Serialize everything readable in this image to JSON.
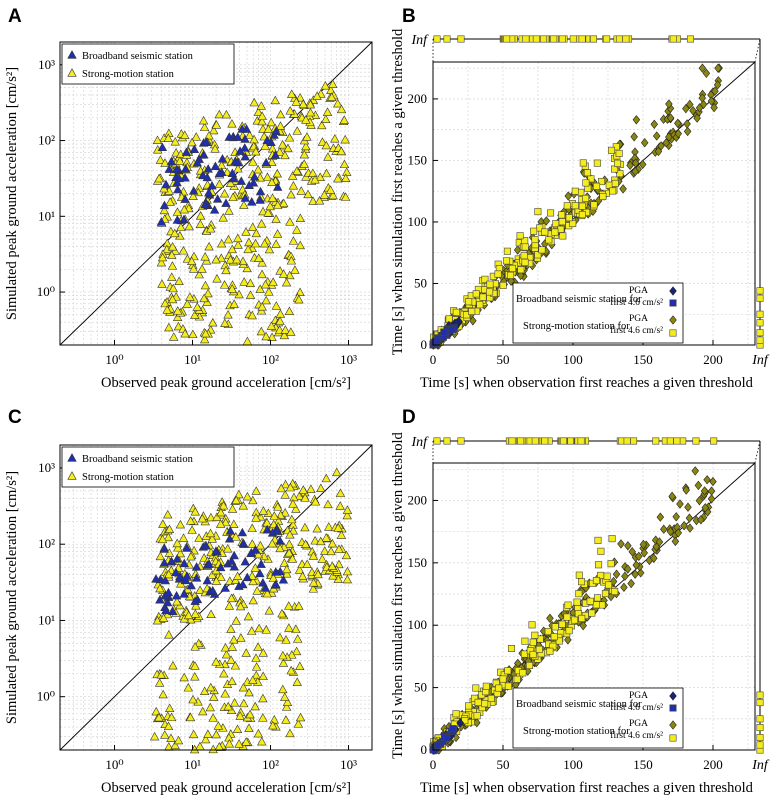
{
  "colors": {
    "broadband": "#1f2fb0",
    "strong_motion": "#f5ec1c",
    "diamond_sm": "#8a8612",
    "diamond_bb": "#1a237a",
    "grid": "#d0d0d0"
  },
  "chart_data": [
    {
      "id": "A",
      "type": "scatter",
      "scale": "loglog",
      "panel_label": "A",
      "xlabel": "Observed peak ground acceleration [cm/s²]",
      "ylabel": "Simulated peak ground acceleration [cm/s²]",
      "xlim": [
        0.2,
        2000
      ],
      "ylim": [
        0.2,
        2000
      ],
      "xticks": [
        "10⁰",
        "10¹",
        "10²",
        "10³"
      ],
      "yticks": [
        "10⁰",
        "10¹",
        "10²",
        "10³"
      ],
      "legend": [
        "Broadband seismic station",
        "Strong-motion station"
      ],
      "series": [
        {
          "name": "Broadband seismic station",
          "marker": "triangle",
          "seed": 11,
          "n": 70,
          "clusters": [
            {
              "w": 1,
              "lx": [
                0.6,
                2.1
              ],
              "ly": [
                1.05,
                2.1
              ]
            }
          ]
        },
        {
          "name": "Strong-motion station",
          "marker": "triangle",
          "seed": 23,
          "n": 430,
          "clusters": [
            {
              "w": 0.62,
              "lx": [
                0.55,
                3.0
              ],
              "ly": [
                0.95,
                2.5
              ]
            },
            {
              "w": 0.38,
              "lx": [
                0.6,
                2.4
              ],
              "ly": [
                -0.75,
                0.85
              ]
            }
          ]
        }
      ]
    },
    {
      "id": "B",
      "type": "scatter",
      "scale": "linear",
      "panel_label": "B",
      "xlabel": "Time [s] when observation first reaches a given threshold",
      "ylabel": "Time [s] when simulation first reaches a given threshold",
      "xlim": [
        0,
        230
      ],
      "ylim": [
        0,
        230
      ],
      "xticks": [
        "0",
        "50",
        "100",
        "150",
        "200"
      ],
      "yticks": [
        "0",
        "50",
        "100",
        "150",
        "200"
      ],
      "inf_label": "Inf",
      "legend": {
        "broadband_label": "Broadband seismic station for",
        "strong_label": "Strong-motion station for",
        "pga": "PGA",
        "first": "first 4.6 cm/s²"
      },
      "series": [
        {
          "name": "Strong-motion PGA",
          "marker": "diamond",
          "seed": 31,
          "n": 300,
          "maxx": 205,
          "spreadUp": 55,
          "spreadDown": 12
        },
        {
          "name": "Strong-motion first 4.6 cm/s²",
          "marker": "square",
          "seed": 37,
          "n": 200,
          "maxx": 135,
          "spreadUp": 60,
          "spreadDown": 6
        },
        {
          "name": "Broadband PGA",
          "marker": "diamond-bb",
          "seed": 41,
          "n": 40,
          "maxx": 20,
          "spreadUp": 8,
          "spreadDown": 4
        },
        {
          "name": "Broadband first 4.6 cm/s²",
          "marker": "square-bb",
          "seed": 43,
          "n": 25,
          "maxx": 15,
          "spreadUp": 6,
          "spreadDown": 3
        }
      ]
    },
    {
      "id": "C",
      "type": "scatter",
      "scale": "loglog",
      "panel_label": "C",
      "xlabel": "Observed peak ground acceleration [cm/s²]",
      "ylabel": "Simulated peak ground acceleration [cm/s²]",
      "xlim": [
        0.2,
        2000
      ],
      "ylim": [
        0.2,
        2000
      ],
      "xticks": [
        "10⁰",
        "10¹",
        "10²",
        "10³"
      ],
      "yticks": [
        "10⁰",
        "10¹",
        "10²",
        "10³"
      ],
      "legend": [
        "Broadband seismic station",
        "Strong-motion station"
      ],
      "series": [
        {
          "name": "Broadband seismic station",
          "marker": "triangle",
          "seed": 53,
          "n": 70,
          "clusters": [
            {
              "w": 1,
              "lx": [
                0.5,
                2.2
              ],
              "ly": [
                1.25,
                2.15
              ]
            }
          ]
        },
        {
          "name": "Strong-motion station",
          "marker": "triangle",
          "seed": 59,
          "n": 430,
          "clusters": [
            {
              "w": 0.66,
              "lx": [
                0.55,
                3.0
              ],
              "ly": [
                1.2,
                2.7
              ]
            },
            {
              "w": 0.34,
              "lx": [
                0.5,
                2.4
              ],
              "ly": [
                -0.7,
                1.0
              ]
            }
          ]
        }
      ]
    },
    {
      "id": "D",
      "type": "scatter",
      "scale": "linear",
      "panel_label": "D",
      "xlabel": "Time [s] when observation first reaches a given threshold",
      "ylabel": "Time [s] when simulation first reaches a given threshold",
      "xlim": [
        0,
        230
      ],
      "ylim": [
        0,
        230
      ],
      "xticks": [
        "0",
        "50",
        "100",
        "150",
        "200"
      ],
      "yticks": [
        "0",
        "50",
        "100",
        "150",
        "200"
      ],
      "inf_label": "Inf",
      "legend": {
        "broadband_label": "Broadband seismic station for",
        "strong_label": "Strong-motion station for",
        "pga": "PGA",
        "first": "first 4.6 cm/s²"
      },
      "series": [
        {
          "name": "Strong-motion PGA",
          "marker": "diamond",
          "seed": 61,
          "n": 300,
          "maxx": 200,
          "spreadUp": 50,
          "spreadDown": 12
        },
        {
          "name": "Strong-motion first 4.6 cm/s²",
          "marker": "square",
          "seed": 67,
          "n": 200,
          "maxx": 130,
          "spreadUp": 55,
          "spreadDown": 6
        },
        {
          "name": "Broadband PGA",
          "marker": "diamond-bb",
          "seed": 71,
          "n": 40,
          "maxx": 20,
          "spreadUp": 8,
          "spreadDown": 4
        },
        {
          "name": "Broadband first 4.6 cm/s²",
          "marker": "square-bb",
          "seed": 73,
          "n": 25,
          "maxx": 15,
          "spreadUp": 6,
          "spreadDown": 3
        }
      ]
    }
  ]
}
